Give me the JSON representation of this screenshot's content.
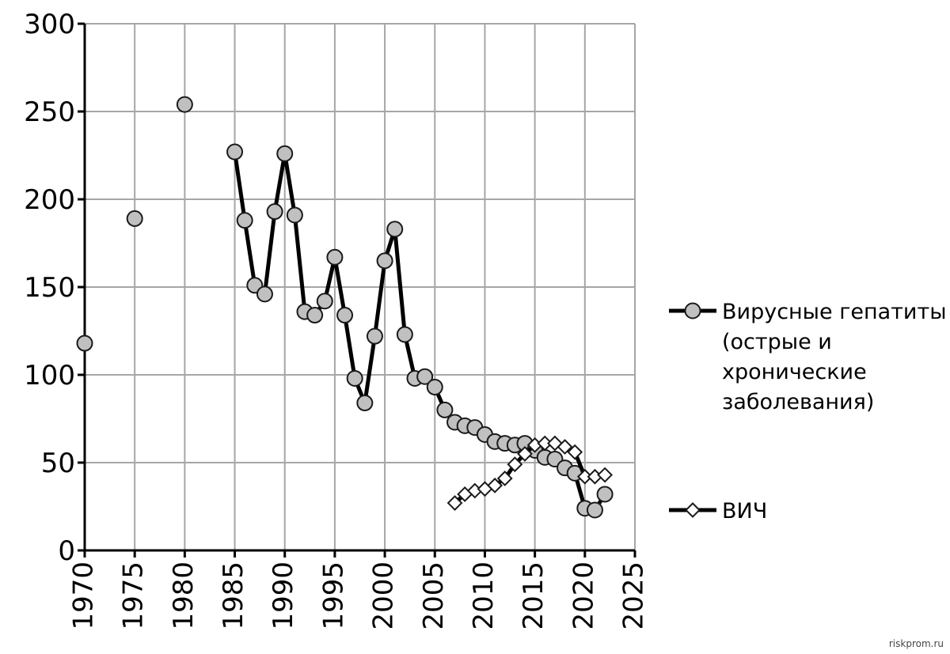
{
  "chart_data": {
    "type": "line",
    "xlim": [
      1970,
      2025
    ],
    "ylim": [
      0,
      300
    ],
    "xticks": [
      1970,
      1975,
      1980,
      1985,
      1990,
      1995,
      2000,
      2005,
      2010,
      2015,
      2020,
      2025
    ],
    "yticks": [
      0,
      50,
      100,
      150,
      200,
      250,
      300
    ],
    "grid": true,
    "legend_position": "right",
    "series": [
      {
        "name": "Вирусные гепатиты (острые и хронические заболевания)",
        "name_lines": [
          "Вирусные гепатиты",
          "(острые и",
          "хронические",
          "заболевания)"
        ],
        "marker": "circle",
        "marker_fill": "#c0c0c0",
        "line_color": "#000000",
        "connected_from": 1985,
        "x": [
          1970,
          1975,
          1980,
          1985,
          1986,
          1987,
          1988,
          1989,
          1990,
          1991,
          1992,
          1993,
          1994,
          1995,
          1996,
          1997,
          1998,
          1999,
          2000,
          2001,
          2002,
          2003,
          2004,
          2005,
          2006,
          2007,
          2008,
          2009,
          2010,
          2011,
          2012,
          2013,
          2014,
          2015,
          2016,
          2017,
          2018,
          2019,
          2020,
          2021,
          2022
        ],
        "y": [
          118,
          189,
          254,
          227,
          188,
          151,
          146,
          193,
          226,
          191,
          136,
          134,
          142,
          167,
          134,
          98,
          84,
          122,
          165,
          183,
          123,
          98,
          99,
          93,
          80,
          73,
          71,
          70,
          66,
          62,
          61,
          60,
          61,
          57,
          53,
          52,
          47,
          44,
          24,
          23,
          32
        ]
      },
      {
        "name": "ВИЧ",
        "marker": "diamond",
        "marker_fill": "#ffffff",
        "line_color": "#000000",
        "x": [
          2007,
          2008,
          2009,
          2010,
          2011,
          2012,
          2013,
          2014,
          2015,
          2016,
          2017,
          2018,
          2019,
          2020,
          2021,
          2022
        ],
        "y": [
          27,
          32,
          34,
          35,
          37,
          41,
          49,
          55,
          60,
          61,
          61,
          59,
          56,
          42,
          42,
          43
        ]
      }
    ]
  },
  "watermark": "riskprom.ru"
}
